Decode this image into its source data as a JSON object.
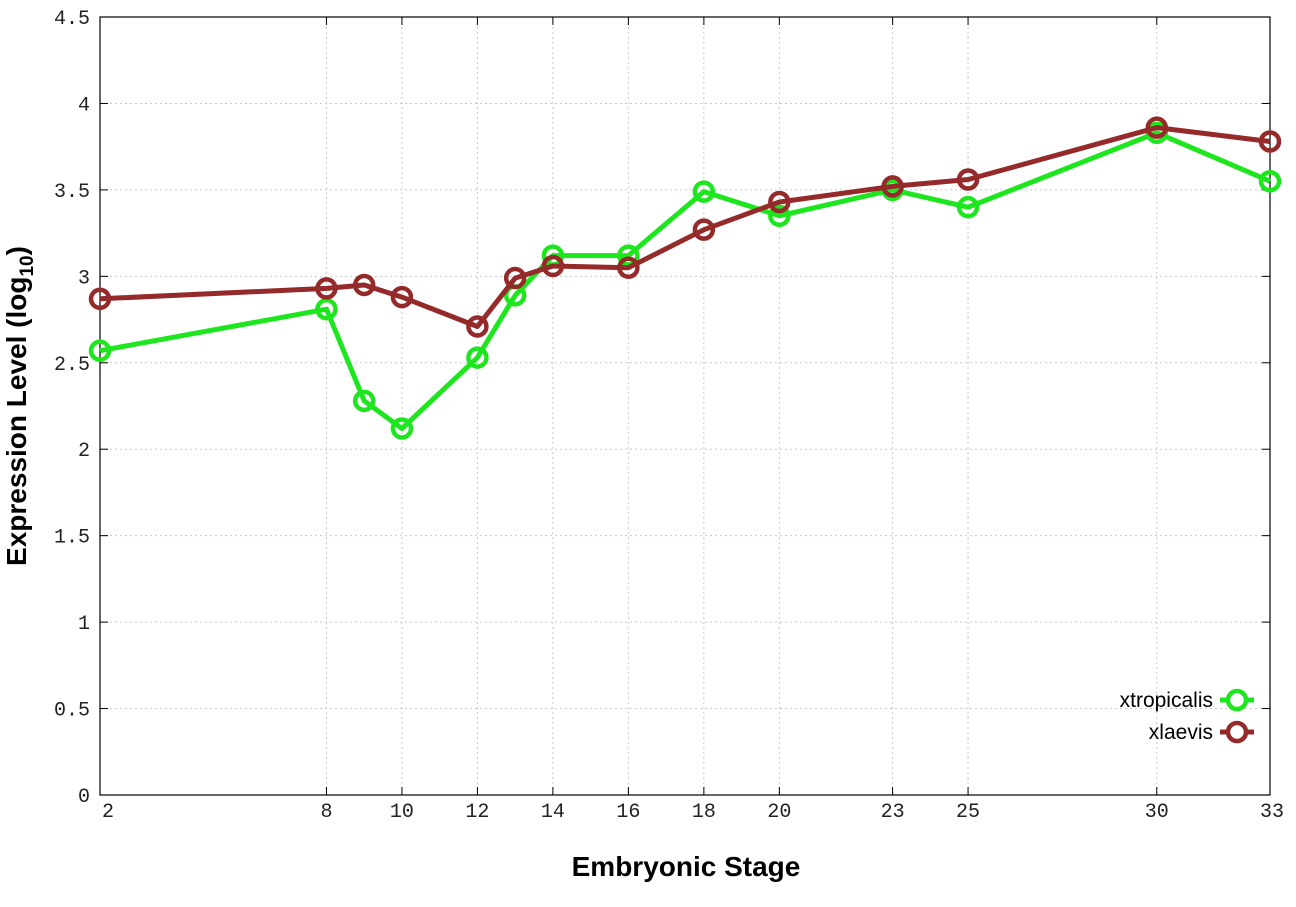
{
  "chart_data": {
    "type": "line",
    "title": "",
    "xlabel": "Embryonic Stage",
    "ylabel_main": "Expression Level (log",
    "ylabel_sub": "10",
    "ylabel_end": ")",
    "xlim": [
      2,
      33
    ],
    "ylim": [
      0,
      4.5
    ],
    "x_ticks": [
      2,
      8,
      10,
      12,
      14,
      16,
      18,
      20,
      23,
      25,
      30,
      33
    ],
    "y_ticks": [
      0,
      0.5,
      1,
      1.5,
      2,
      2.5,
      3,
      3.5,
      4,
      4.5
    ],
    "y_tick_labels": [
      "0",
      "0.5",
      "1",
      "1.5",
      "2",
      "2.5",
      "3",
      "3.5",
      "4",
      "4.5"
    ],
    "grid": true,
    "legend_position": "bottom-right",
    "series": [
      {
        "name": "xtropicalis",
        "color": "#1ee61e",
        "x": [
          2,
          8,
          9,
          10,
          12,
          13,
          14,
          16,
          18,
          20,
          23,
          25,
          30,
          33
        ],
        "y": [
          2.57,
          2.81,
          2.28,
          2.12,
          2.53,
          2.89,
          3.12,
          3.12,
          3.49,
          3.35,
          3.5,
          3.4,
          3.83,
          3.55
        ]
      },
      {
        "name": "xlaevis",
        "color": "#952a2a",
        "x": [
          2,
          8,
          9,
          10,
          12,
          13,
          14,
          16,
          18,
          20,
          23,
          25,
          30,
          33
        ],
        "y": [
          2.87,
          2.93,
          2.95,
          2.88,
          2.71,
          2.99,
          3.06,
          3.05,
          3.27,
          3.43,
          3.52,
          3.56,
          3.86,
          3.78
        ]
      }
    ]
  }
}
